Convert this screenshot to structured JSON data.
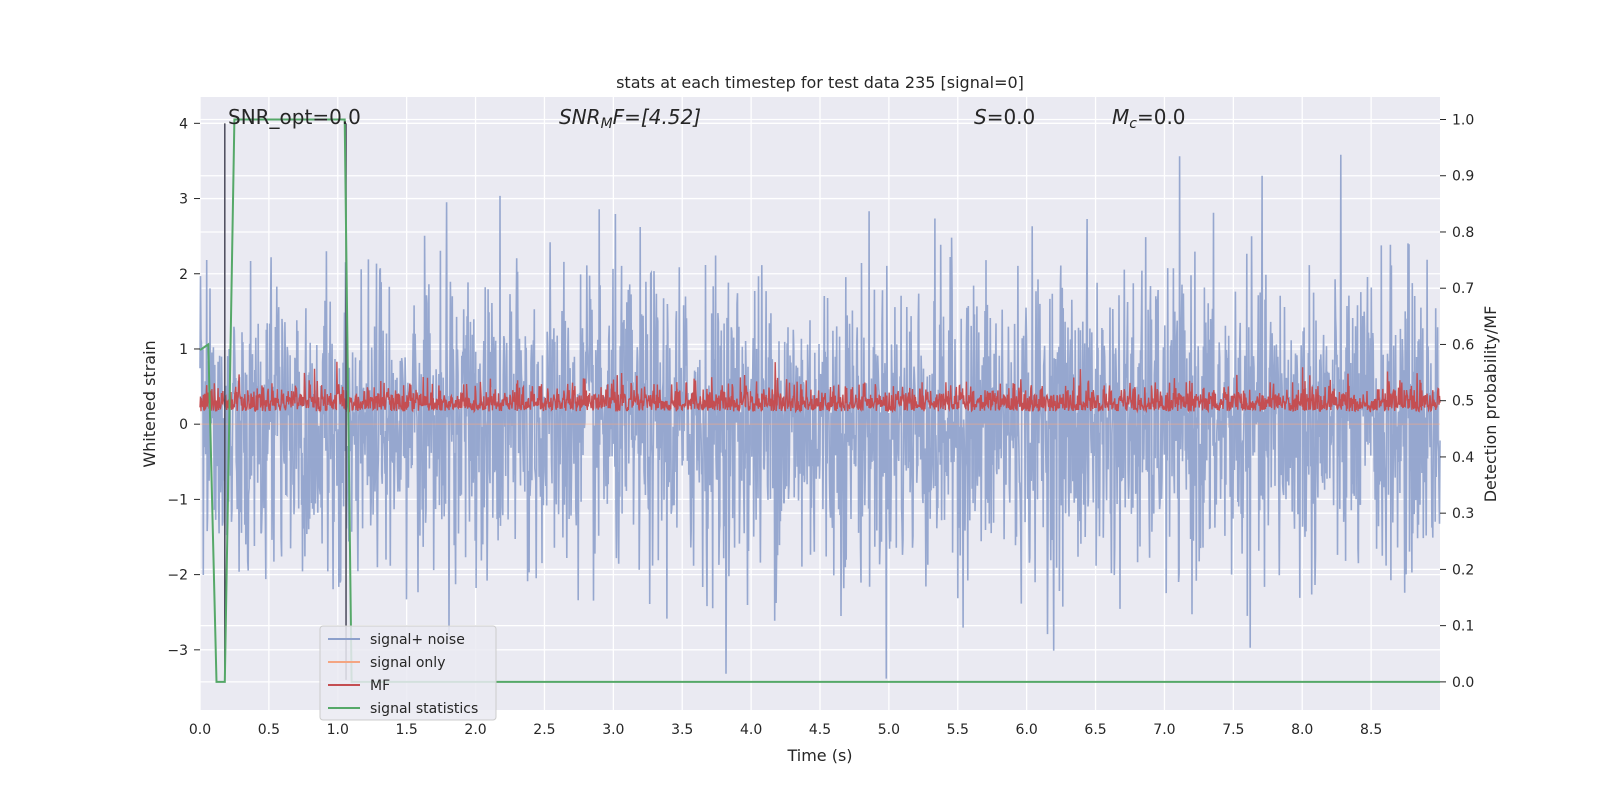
{
  "chart_data": {
    "type": "line",
    "title": "stats at each timestep for test data 235 [signal=0]",
    "xlabel": "Time (s)",
    "ylabel_left": "Whitened strain",
    "ylabel_right": "Detection probability/MF",
    "xlim": [
      0.0,
      9.0
    ],
    "ylim_left": [
      -3.8,
      4.35
    ],
    "ylim_right": [
      -0.05,
      1.04
    ],
    "xticks": [
      "0.0",
      "0.5",
      "1.0",
      "1.5",
      "2.0",
      "2.5",
      "3.0",
      "3.5",
      "4.0",
      "4.5",
      "5.0",
      "5.5",
      "6.0",
      "6.5",
      "7.0",
      "7.5",
      "8.0",
      "8.5"
    ],
    "yticks_left": [
      "4",
      "3",
      "2",
      "1",
      "0",
      "−1",
      "−2",
      "−3"
    ],
    "yticks_right": [
      "1.0",
      "0.9",
      "0.8",
      "0.7",
      "0.6",
      "0.5",
      "0.4",
      "0.3",
      "0.2",
      "0.1",
      "0.0"
    ],
    "grid": true,
    "legend_position": "lower-left",
    "annotations": {
      "snr_opt": "SNR_opt=0.0",
      "snr_mf_label": "SNR",
      "snr_mf_sub": "M",
      "snr_mf_rest": "F=[4.52]",
      "s_label": "S",
      "s_rest": "=0.0",
      "mc_label": "M",
      "mc_sub": "c",
      "mc_rest": "=0.0"
    },
    "series": [
      {
        "name": "signal+ noise",
        "color": "#8da0cb",
        "axis": "left",
        "summary": {
          "min": -3.4,
          "max": 4.0,
          "mean": 0.0
        }
      },
      {
        "name": "signal only",
        "color": "#f4a582",
        "axis": "left",
        "values_constant": 0.0
      },
      {
        "name": "MF",
        "color": "#c44e52",
        "axis": "left",
        "summary": {
          "min": 0.0,
          "max": 1.0,
          "mean": 0.25
        }
      },
      {
        "name": "signal statistics",
        "color": "#55a868",
        "axis": "right",
        "x": [
          0.0,
          0.06,
          0.12,
          0.18,
          0.25,
          1.0,
          1.05,
          1.1,
          1.15,
          9.0
        ],
        "values": [
          0.59,
          0.6,
          0.0,
          0.0,
          1.0,
          1.0,
          1.0,
          0.0,
          0.0,
          0.0
        ]
      }
    ],
    "vertical_lines": [
      0.18,
      1.06
    ]
  }
}
